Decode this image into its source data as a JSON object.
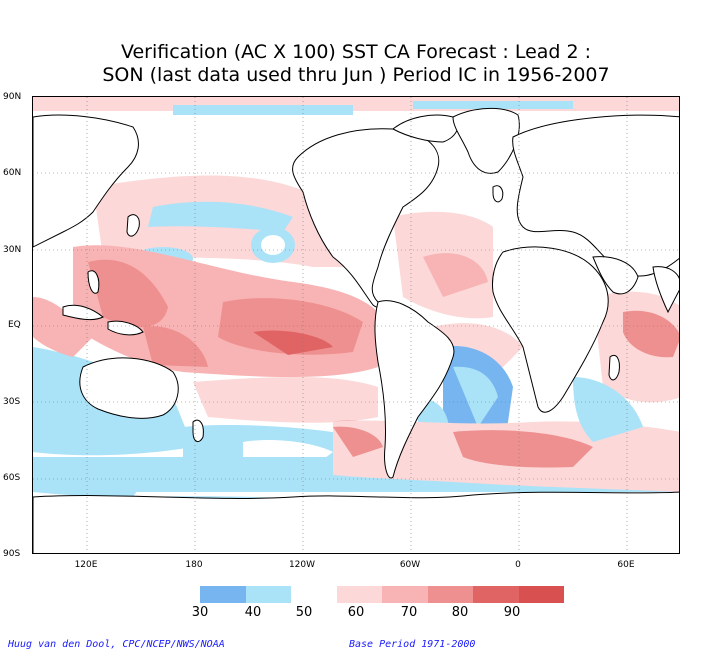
{
  "title_line1": "Verification (AC X 100) SST CA Forecast : Lead 2 :",
  "title_line2": "SON (last data used thru Jun ) Period IC in 1956-2007",
  "lat_labels": [
    "90N",
    "60N",
    "30N",
    "EQ",
    "30S",
    "60S",
    "90S"
  ],
  "lon_labels": [
    "120E",
    "180",
    "120W",
    "60W",
    "0",
    "60E"
  ],
  "legend": {
    "labels": [
      "30",
      "40",
      "50",
      "60",
      "70",
      "80",
      "90"
    ],
    "colors": [
      "#76b5f0",
      "#aae2f8",
      "#ffffff",
      "#fcd8d8",
      "#f8b4b4",
      "#ef9090",
      "#e06464",
      "#d85050"
    ]
  },
  "footer": {
    "credit": "Huug van den Dool, CPC/NCEP/NWS/NOAA",
    "base_period": "Base Period 1971-2000"
  },
  "colors": {
    "land": "#ffffff",
    "coastline": "#000000",
    "grid": "#777777"
  }
}
